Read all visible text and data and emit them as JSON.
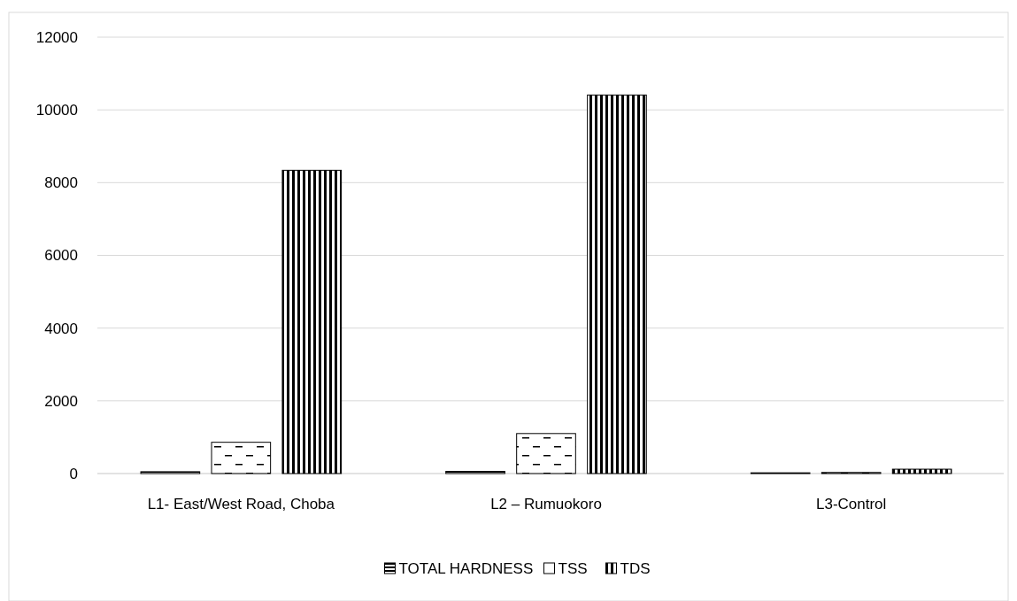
{
  "chart_data": {
    "type": "bar",
    "categories": [
      "L1- East/West Road, Choba",
      "L2 – Rumuokoro",
      "L3-Control"
    ],
    "series": [
      {
        "name": "TOTAL HARDNESS",
        "color": "#000000",
        "values": [
          50,
          60,
          20
        ]
      },
      {
        "name": "TSS",
        "color": "#000000",
        "values": [
          860,
          1100,
          30
        ]
      },
      {
        "name": "TDS",
        "color": "#000000",
        "values": [
          8340,
          10410,
          120
        ]
      }
    ],
    "ylim": [
      0,
      12000
    ],
    "yticks": [
      0,
      2000,
      4000,
      6000,
      8000,
      10000,
      12000
    ],
    "grid": "y",
    "legend": "bottom"
  }
}
